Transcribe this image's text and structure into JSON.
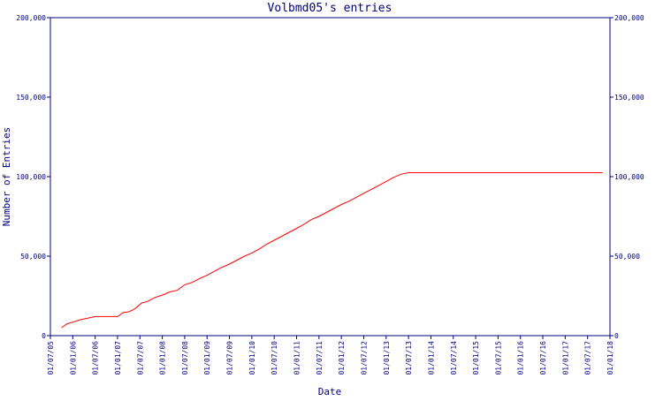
{
  "chart_data": {
    "type": "line",
    "title": "Volbmd05's entries",
    "xlabel": "Date",
    "ylabel": "Number of Entries",
    "ylim": [
      0,
      200000
    ],
    "xlim": [
      "2005-07-01",
      "2018-01-01"
    ],
    "yticks": [
      0,
      50000,
      100000,
      150000,
      200000
    ],
    "ytick_labels": [
      "0",
      "50,000",
      "100,000",
      "150,000",
      "200,000"
    ],
    "xtick_labels": [
      "01/07/05",
      "01/01/06",
      "01/07/06",
      "01/01/07",
      "01/07/07",
      "01/01/08",
      "01/07/08",
      "01/01/09",
      "01/07/09",
      "01/01/10",
      "01/07/10",
      "01/01/11",
      "01/07/11",
      "01/01/12",
      "01/07/12",
      "01/01/13",
      "01/07/13",
      "01/01/14",
      "01/07/14",
      "01/01/15",
      "01/07/15",
      "01/01/16",
      "01/07/16",
      "01/01/17",
      "01/07/17",
      "01/01/18"
    ],
    "grid": false,
    "colors": {
      "axis": "#000080",
      "text": "#000080",
      "line": "#ff0000",
      "background": "#ffffff"
    },
    "series": [
      {
        "x": [
          "2005-10-01",
          "2005-11-15",
          "2006-01-01",
          "2006-03-01",
          "2006-05-01",
          "2006-07-01",
          "2006-09-01",
          "2006-11-01",
          "2007-01-01",
          "2007-02-15",
          "2007-04-01",
          "2007-05-01",
          "2007-06-01",
          "2007-07-15",
          "2007-09-01",
          "2007-11-01",
          "2008-01-01",
          "2008-03-01",
          "2008-05-01",
          "2008-07-01",
          "2008-09-01",
          "2008-11-01",
          "2009-01-01",
          "2009-03-01",
          "2009-05-01",
          "2009-07-01",
          "2009-09-01",
          "2009-11-01",
          "2010-01-01",
          "2010-03-01",
          "2010-05-01",
          "2010-07-01",
          "2010-09-01",
          "2010-11-01",
          "2011-01-01",
          "2011-03-01",
          "2011-05-01",
          "2011-07-01",
          "2011-09-01",
          "2011-11-01",
          "2012-01-01",
          "2012-03-01",
          "2012-05-01",
          "2012-07-01",
          "2012-09-01",
          "2012-11-01",
          "2013-01-01",
          "2013-03-01",
          "2013-05-01",
          "2013-07-01",
          "2014-01-01",
          "2015-01-01",
          "2016-01-01",
          "2017-01-01",
          "2017-11-01"
        ],
        "values": [
          5000,
          7500,
          8500,
          10000,
          11000,
          12000,
          12000,
          12000,
          12000,
          14500,
          15000,
          16000,
          17500,
          20500,
          21500,
          24000,
          25500,
          27500,
          28500,
          32000,
          33500,
          36000,
          38000,
          40500,
          43000,
          45000,
          47500,
          50000,
          52000,
          54500,
          57500,
          60000,
          62500,
          65000,
          67500,
          70000,
          73000,
          75000,
          77500,
          80000,
          82500,
          84500,
          87000,
          89500,
          92000,
          94500,
          97000,
          99500,
          101500,
          102500,
          102500,
          102500,
          102500,
          102500,
          102500
        ]
      }
    ]
  }
}
